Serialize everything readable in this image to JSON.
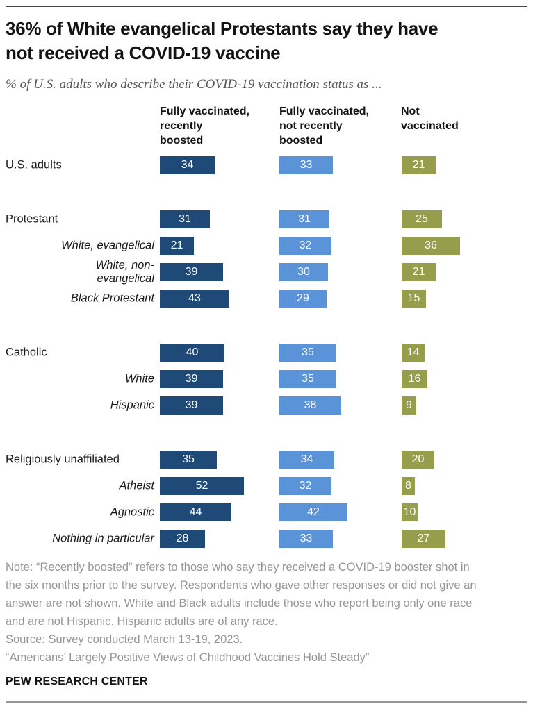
{
  "header": {
    "title": "36% of White evangelical Protestants say they have\nnot received a COVID-19 vaccine",
    "subtitle": "% of U.S. adults who describe their COVID-19 vaccination status as ..."
  },
  "chart_data": {
    "type": "bar",
    "orientation": "horizontal",
    "unit": "%",
    "grid": "off",
    "legend_position": "column-headers-top",
    "value_labels": "inside-bars-white",
    "xlim": [
      0,
      60
    ],
    "columns": [
      "Fully vaccinated,\nrecently\nboosted",
      "Fully vaccinated,\nnot recently\nboosted",
      "Not\nvaccinated"
    ],
    "series_colors": [
      "#1f4a78",
      "#5b93d8",
      "#969e4d"
    ],
    "rows": [
      {
        "label": "U.S. adults",
        "style": "group",
        "gap_before": false,
        "values": [
          34,
          33,
          21
        ]
      },
      {
        "label": "Protestant",
        "style": "group",
        "gap_before": true,
        "values": [
          31,
          31,
          25
        ]
      },
      {
        "label": "White, evangelical",
        "style": "sub",
        "gap_before": false,
        "values": [
          21,
          32,
          36
        ]
      },
      {
        "label": "White, non-\nevangelical",
        "style": "sub",
        "gap_before": false,
        "values": [
          39,
          30,
          21
        ]
      },
      {
        "label": "Black Protestant",
        "style": "sub",
        "gap_before": false,
        "values": [
          43,
          29,
          15
        ]
      },
      {
        "label": "Catholic",
        "style": "group",
        "gap_before": true,
        "values": [
          40,
          35,
          14
        ]
      },
      {
        "label": "White",
        "style": "sub",
        "gap_before": false,
        "values": [
          39,
          35,
          16
        ]
      },
      {
        "label": "Hispanic",
        "style": "sub",
        "gap_before": false,
        "values": [
          39,
          38,
          9
        ]
      },
      {
        "label": "Religiously unaffiliated",
        "style": "group",
        "gap_before": true,
        "values": [
          35,
          34,
          20
        ]
      },
      {
        "label": "Atheist",
        "style": "sub",
        "gap_before": false,
        "values": [
          52,
          32,
          8
        ]
      },
      {
        "label": "Agnostic",
        "style": "sub",
        "gap_before": false,
        "values": [
          44,
          42,
          10
        ]
      },
      {
        "label": "Nothing in particular",
        "style": "sub",
        "gap_before": false,
        "values": [
          28,
          33,
          27
        ]
      }
    ]
  },
  "footer": {
    "note": "Note: “Recently boosted” refers to those who say they received a COVID-19 booster shot in\nthe six months prior to the survey. Respondents who gave other responses or did not give an\nanswer are not shown. White and Black adults include those who report being only one race\nand are not Hispanic. Hispanic adults are of any race.",
    "source": "Source: Survey conducted March 13-19, 2023.",
    "report": "“Americans’ Largely Positive Views of Childhood Vaccines Hold Steady”",
    "brand": "PEW RESEARCH CENTER"
  }
}
